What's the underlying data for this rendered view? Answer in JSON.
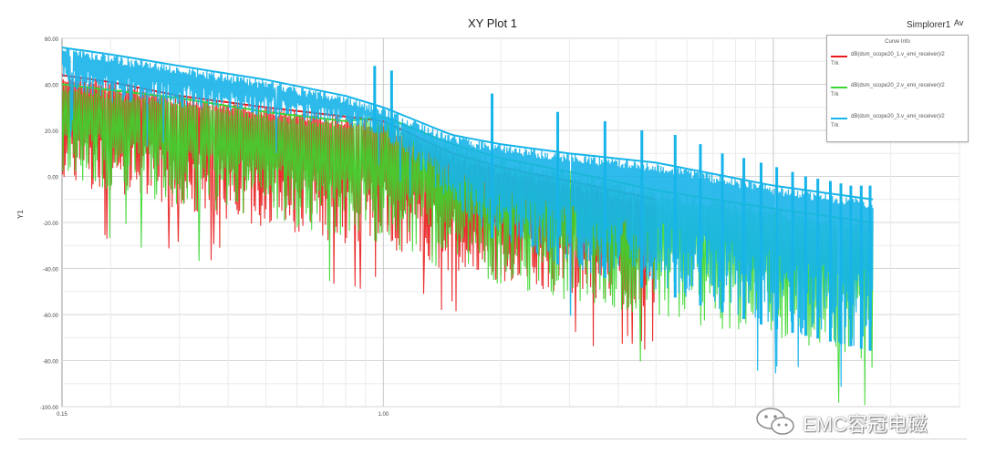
{
  "chart_data": {
    "type": "line",
    "title": "XY Plot 1",
    "top_right_label": "Simplorer1",
    "corner_tag": "Av",
    "ylabel": "Y1",
    "x_scale": "log",
    "xlim": [
      0.15,
      30
    ],
    "ylim": [
      -100,
      60
    ],
    "y_ticks": [
      "60.00",
      "40.00",
      "20.00",
      "0.00",
      "-20.00",
      "-40.00",
      "-60.00",
      "-80.00",
      "-100.00"
    ],
    "x_ticks": [
      "0.15",
      "1.00"
    ],
    "grid": true,
    "legend": {
      "title": "Curve Info",
      "placement": "top-right",
      "unit": "Trk"
    },
    "series": [
      {
        "name": "dB(dsm_scope20_1.v_emi_receiver)/2",
        "color": "#e8191a",
        "x": [
          0.15,
          0.2,
          0.3,
          0.5,
          0.8,
          1.0,
          1.5,
          2.0,
          3.0,
          5.0
        ],
        "y_upper": [
          44,
          41,
          35,
          30,
          26,
          24,
          10,
          4,
          -2,
          -10
        ],
        "y_lower": [
          -2,
          -8,
          -14,
          -22,
          -30,
          -30,
          -42,
          -46,
          -52,
          -58
        ]
      },
      {
        "name": "dB(dsm_scope20_2.v_emi_receiver)/2",
        "color": "#3bd62f",
        "x": [
          0.15,
          0.3,
          0.5,
          0.8,
          1.0,
          1.5,
          2.0,
          3.0,
          5.0,
          10.0,
          18.0
        ],
        "y_upper": [
          40,
          34,
          28,
          24,
          26,
          14,
          8,
          2,
          -6,
          -14,
          -20
        ],
        "y_lower": [
          -2,
          -14,
          -20,
          -26,
          -30,
          -42,
          -48,
          -54,
          -62,
          -70,
          -88
        ]
      },
      {
        "name": "dB(dsm_scope20_3.v_emi_receiver)/2",
        "color": "#17b4ea",
        "x": [
          0.15,
          0.2,
          0.3,
          0.5,
          0.8,
          1.0,
          1.5,
          2.0,
          3.0,
          5.0,
          10.0,
          18.0
        ],
        "y_upper": [
          56,
          53,
          48,
          42,
          35,
          30,
          18,
          14,
          10,
          6,
          -4,
          -10
        ],
        "y_lower": [
          40,
          32,
          30,
          26,
          22,
          18,
          -12,
          -30,
          -40,
          -50,
          -66,
          -76
        ],
        "spikes": [
          {
            "x": 0.95,
            "y": 48
          },
          {
            "x": 1.05,
            "y": 46
          },
          {
            "x": 1.9,
            "y": 36
          },
          {
            "x": 2.8,
            "y": 28
          },
          {
            "x": 3.7,
            "y": 24
          },
          {
            "x": 4.6,
            "y": 20
          },
          {
            "x": 5.6,
            "y": 18
          },
          {
            "x": 6.5,
            "y": 14
          },
          {
            "x": 7.4,
            "y": 10
          },
          {
            "x": 8.4,
            "y": 8
          },
          {
            "x": 9.3,
            "y": 6
          },
          {
            "x": 10.2,
            "y": 4
          },
          {
            "x": 11.2,
            "y": 2
          },
          {
            "x": 12.1,
            "y": 0
          },
          {
            "x": 13.0,
            "y": -1
          },
          {
            "x": 14.0,
            "y": -2
          },
          {
            "x": 14.9,
            "y": -3
          },
          {
            "x": 15.8,
            "y": -4
          },
          {
            "x": 16.8,
            "y": -4
          },
          {
            "x": 17.7,
            "y": -4
          }
        ]
      }
    ]
  },
  "watermark": {
    "icon": "wechat-icon",
    "text": "EMC容冠电磁"
  }
}
